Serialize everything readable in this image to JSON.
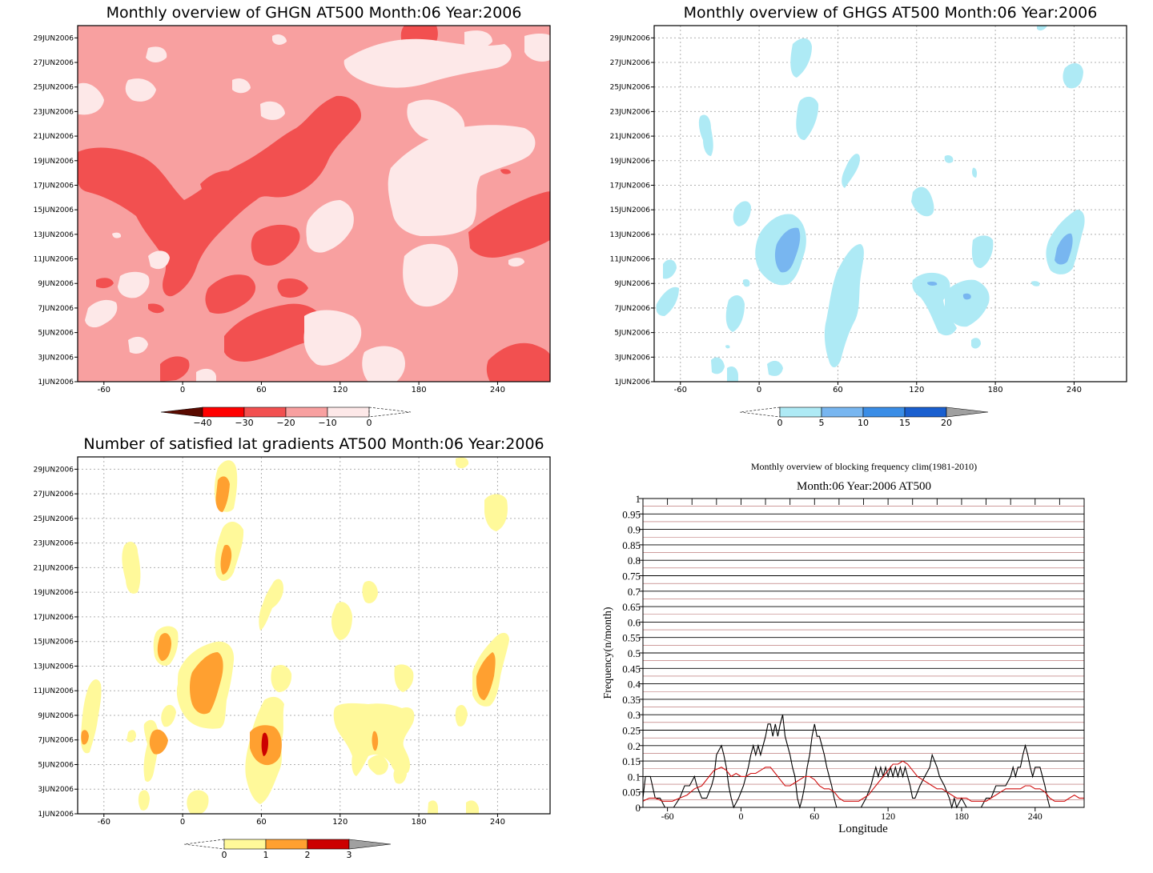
{
  "chart_data": [
    {
      "type": "heatmap",
      "title": "Monthly overview of GHGN AT500 Month:06 Year:2006",
      "x_ticks": [
        "-60",
        "0",
        "60",
        "120",
        "180",
        "240"
      ],
      "x_tick_values": [
        -60,
        0,
        60,
        120,
        180,
        240
      ],
      "y_ticks": [
        "1JUN2006",
        "3JUN2006",
        "5JUN2006",
        "7JUN2006",
        "9JUN2006",
        "11JUN2006",
        "13JUN2006",
        "15JUN2006",
        "17JUN2006",
        "19JUN2006",
        "21JUN2006",
        "23JUN2006",
        "25JUN2006",
        "27JUN2006",
        "29JUN2006"
      ],
      "xlim": [
        -80,
        280
      ],
      "ylim": [
        1,
        30
      ],
      "colorbar": {
        "labels": [
          "−40",
          "−30",
          "−20",
          "−10",
          "0"
        ],
        "colors": [
          "#5a0a00",
          "#ff0000",
          "#f25050",
          "#f8a0a0",
          "#fde8e8"
        ],
        "extension": "min"
      },
      "background": "#f8a0a0"
    },
    {
      "type": "heatmap",
      "title": "Monthly overview of GHGS AT500 Month:06 Year:2006",
      "x_ticks": [
        "-60",
        "0",
        "60",
        "120",
        "180",
        "240"
      ],
      "x_tick_values": [
        -60,
        0,
        60,
        120,
        180,
        240
      ],
      "y_ticks": [
        "1JUN2006",
        "3JUN2006",
        "5JUN2006",
        "7JUN2006",
        "9JUN2006",
        "11JUN2006",
        "13JUN2006",
        "15JUN2006",
        "17JUN2006",
        "19JUN2006",
        "21JUN2006",
        "23JUN2006",
        "25JUN2006",
        "27JUN2006",
        "29JUN2006"
      ],
      "xlim": [
        -80,
        280
      ],
      "ylim": [
        1,
        30
      ],
      "colorbar": {
        "labels": [
          "0",
          "5",
          "10",
          "15",
          "20"
        ],
        "colors": [
          "#aeeaf5",
          "#78b6f0",
          "#3a8de6",
          "#1a5fcf",
          "#a0a0a0"
        ],
        "extension": "max"
      },
      "grid": true
    },
    {
      "type": "heatmap",
      "title": "Number of satisfied lat gradients AT500 Month:06 Year:2006",
      "x_ticks": [
        "-60",
        "0",
        "60",
        "120",
        "180",
        "240"
      ],
      "x_tick_values": [
        -60,
        0,
        60,
        120,
        180,
        240
      ],
      "y_ticks": [
        "1JUN2006",
        "3JUN2006",
        "5JUN2006",
        "7JUN2006",
        "9JUN2006",
        "11JUN2006",
        "13JUN2006",
        "15JUN2006",
        "17JUN2006",
        "19JUN2006",
        "21JUN2006",
        "23JUN2006",
        "25JUN2006",
        "27JUN2006",
        "29JUN2006"
      ],
      "xlim": [
        -80,
        280
      ],
      "ylim": [
        1,
        30
      ],
      "colorbar": {
        "labels": [
          "0",
          "1",
          "2",
          "3"
        ],
        "colors": [
          "#fff99a",
          "#ffa030",
          "#cc0000",
          "#a0a0a0"
        ],
        "extension": "max"
      },
      "grid": true
    },
    {
      "type": "line",
      "title": "Monthly overview of blocking frequency clim(1981-2010)",
      "subtitle": "Month:06 Year:2006  AT500",
      "xlabel": "Longitude",
      "ylabel": "Frequency(n/month)",
      "x_ticks": [
        "-60",
        "0",
        "60",
        "120",
        "180",
        "240"
      ],
      "x_tick_values": [
        -60,
        0,
        60,
        120,
        180,
        240
      ],
      "y_ticks": [
        "0",
        "0.05",
        "0.1",
        "0.15",
        "0.2",
        "0.25",
        "0.3",
        "0.35",
        "0.4",
        "0.45",
        "0.5",
        "0.55",
        "0.6",
        "0.65",
        "0.7",
        "0.75",
        "0.8",
        "0.85",
        "0.9",
        "0.95",
        "1"
      ],
      "xlim": [
        -80,
        280
      ],
      "ylim": [
        0,
        1
      ],
      "series": [
        {
          "color": "#000000",
          "points": [
            [
              -80,
              0.03
            ],
            [
              -78,
              0.1
            ],
            [
              -74,
              0.1
            ],
            [
              -70,
              0.03
            ],
            [
              -66,
              0.03
            ],
            [
              -62,
              0.0
            ],
            [
              -55,
              0.0
            ],
            [
              -50,
              0.03
            ],
            [
              -46,
              0.07
            ],
            [
              -42,
              0.07
            ],
            [
              -38,
              0.1
            ],
            [
              -36,
              0.07
            ],
            [
              -32,
              0.03
            ],
            [
              -28,
              0.03
            ],
            [
              -24,
              0.07
            ],
            [
              -22,
              0.1
            ],
            [
              -20,
              0.17
            ],
            [
              -16,
              0.2
            ],
            [
              -14,
              0.17
            ],
            [
              -12,
              0.13
            ],
            [
              -10,
              0.07
            ],
            [
              -8,
              0.03
            ],
            [
              -6,
              0.0
            ],
            [
              -2,
              0.03
            ],
            [
              2,
              0.07
            ],
            [
              4,
              0.1
            ],
            [
              6,
              0.13
            ],
            [
              8,
              0.17
            ],
            [
              10,
              0.2
            ],
            [
              12,
              0.17
            ],
            [
              14,
              0.2
            ],
            [
              16,
              0.17
            ],
            [
              18,
              0.2
            ],
            [
              20,
              0.23
            ],
            [
              22,
              0.27
            ],
            [
              24,
              0.27
            ],
            [
              26,
              0.23
            ],
            [
              28,
              0.27
            ],
            [
              30,
              0.23
            ],
            [
              32,
              0.27
            ],
            [
              34,
              0.3
            ],
            [
              36,
              0.23
            ],
            [
              38,
              0.2
            ],
            [
              40,
              0.17
            ],
            [
              42,
              0.13
            ],
            [
              44,
              0.1
            ],
            [
              46,
              0.03
            ],
            [
              48,
              0.0
            ],
            [
              50,
              0.03
            ],
            [
              52,
              0.07
            ],
            [
              54,
              0.13
            ],
            [
              56,
              0.17
            ],
            [
              58,
              0.23
            ],
            [
              60,
              0.27
            ],
            [
              62,
              0.23
            ],
            [
              64,
              0.23
            ],
            [
              66,
              0.2
            ],
            [
              68,
              0.17
            ],
            [
              70,
              0.13
            ],
            [
              72,
              0.1
            ],
            [
              74,
              0.07
            ],
            [
              76,
              0.03
            ],
            [
              78,
              0.0
            ],
            [
              82,
              0.0
            ],
            [
              86,
              0.0
            ],
            [
              90,
              0.0
            ],
            [
              94,
              0.0
            ],
            [
              98,
              0.0
            ],
            [
              102,
              0.03
            ],
            [
              106,
              0.07
            ],
            [
              108,
              0.1
            ],
            [
              110,
              0.13
            ],
            [
              112,
              0.1
            ],
            [
              114,
              0.13
            ],
            [
              116,
              0.1
            ],
            [
              118,
              0.13
            ],
            [
              120,
              0.1
            ],
            [
              122,
              0.13
            ],
            [
              124,
              0.1
            ],
            [
              126,
              0.13
            ],
            [
              128,
              0.1
            ],
            [
              130,
              0.13
            ],
            [
              132,
              0.1
            ],
            [
              134,
              0.13
            ],
            [
              136,
              0.1
            ],
            [
              138,
              0.07
            ],
            [
              140,
              0.03
            ],
            [
              142,
              0.03
            ],
            [
              146,
              0.07
            ],
            [
              150,
              0.1
            ],
            [
              154,
              0.13
            ],
            [
              156,
              0.17
            ],
            [
              160,
              0.13
            ],
            [
              162,
              0.1
            ],
            [
              166,
              0.07
            ],
            [
              170,
              0.03
            ],
            [
              172,
              0.0
            ],
            [
              174,
              0.03
            ],
            [
              176,
              0.0
            ],
            [
              180,
              0.03
            ],
            [
              184,
              0.0
            ],
            [
              188,
              0.0
            ],
            [
              192,
              0.0
            ],
            [
              196,
              0.0
            ],
            [
              200,
              0.03
            ],
            [
              204,
              0.03
            ],
            [
              208,
              0.07
            ],
            [
              212,
              0.07
            ],
            [
              216,
              0.07
            ],
            [
              220,
              0.1
            ],
            [
              222,
              0.13
            ],
            [
              224,
              0.1
            ],
            [
              226,
              0.13
            ],
            [
              228,
              0.13
            ],
            [
              230,
              0.17
            ],
            [
              232,
              0.2
            ],
            [
              234,
              0.17
            ],
            [
              236,
              0.13
            ],
            [
              238,
              0.1
            ],
            [
              240,
              0.13
            ],
            [
              244,
              0.13
            ],
            [
              248,
              0.07
            ],
            [
              250,
              0.03
            ],
            [
              252,
              0.0
            ]
          ]
        },
        {
          "color": "#d01010",
          "points": [
            [
              -80,
              0.02
            ],
            [
              -75,
              0.03
            ],
            [
              -70,
              0.03
            ],
            [
              -64,
              0.02
            ],
            [
              -56,
              0.02
            ],
            [
              -50,
              0.03
            ],
            [
              -44,
              0.04
            ],
            [
              -38,
              0.06
            ],
            [
              -32,
              0.07
            ],
            [
              -26,
              0.1
            ],
            [
              -22,
              0.12
            ],
            [
              -16,
              0.13
            ],
            [
              -12,
              0.12
            ],
            [
              -8,
              0.1
            ],
            [
              -4,
              0.11
            ],
            [
              0,
              0.1
            ],
            [
              4,
              0.1
            ],
            [
              8,
              0.11
            ],
            [
              12,
              0.11
            ],
            [
              16,
              0.12
            ],
            [
              20,
              0.13
            ],
            [
              24,
              0.13
            ],
            [
              28,
              0.11
            ],
            [
              32,
              0.09
            ],
            [
              36,
              0.07
            ],
            [
              40,
              0.07
            ],
            [
              44,
              0.08
            ],
            [
              48,
              0.09
            ],
            [
              52,
              0.1
            ],
            [
              56,
              0.1
            ],
            [
              60,
              0.09
            ],
            [
              64,
              0.07
            ],
            [
              68,
              0.06
            ],
            [
              72,
              0.06
            ],
            [
              76,
              0.05
            ],
            [
              80,
              0.03
            ],
            [
              84,
              0.02
            ],
            [
              88,
              0.02
            ],
            [
              92,
              0.02
            ],
            [
              96,
              0.02
            ],
            [
              100,
              0.03
            ],
            [
              104,
              0.04
            ],
            [
              108,
              0.06
            ],
            [
              112,
              0.08
            ],
            [
              116,
              0.1
            ],
            [
              120,
              0.12
            ],
            [
              124,
              0.14
            ],
            [
              128,
              0.14
            ],
            [
              132,
              0.15
            ],
            [
              136,
              0.14
            ],
            [
              140,
              0.12
            ],
            [
              144,
              0.1
            ],
            [
              148,
              0.09
            ],
            [
              152,
              0.08
            ],
            [
              156,
              0.07
            ],
            [
              160,
              0.06
            ],
            [
              164,
              0.06
            ],
            [
              168,
              0.05
            ],
            [
              172,
              0.04
            ],
            [
              176,
              0.03
            ],
            [
              180,
              0.03
            ],
            [
              184,
              0.03
            ],
            [
              188,
              0.02
            ],
            [
              192,
              0.02
            ],
            [
              196,
              0.02
            ],
            [
              200,
              0.02
            ],
            [
              204,
              0.03
            ],
            [
              208,
              0.04
            ],
            [
              212,
              0.05
            ],
            [
              216,
              0.06
            ],
            [
              220,
              0.06
            ],
            [
              224,
              0.06
            ],
            [
              228,
              0.06
            ],
            [
              232,
              0.07
            ],
            [
              236,
              0.07
            ],
            [
              240,
              0.06
            ],
            [
              244,
              0.06
            ],
            [
              248,
              0.05
            ],
            [
              252,
              0.03
            ],
            [
              256,
              0.02
            ],
            [
              260,
              0.02
            ],
            [
              264,
              0.02
            ],
            [
              268,
              0.03
            ],
            [
              272,
              0.04
            ],
            [
              276,
              0.03
            ],
            [
              280,
              0.03
            ]
          ]
        }
      ],
      "grid": true
    }
  ]
}
